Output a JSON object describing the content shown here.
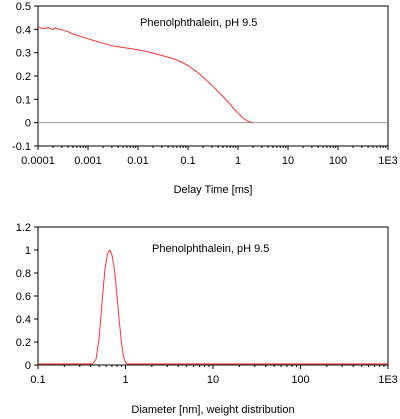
{
  "chart_data": [
    {
      "type": "line",
      "annotation": "Phenolphthalein, pH 9.5",
      "xlabel": "Delay Time [ms]",
      "ylabel": "",
      "xscale": "log",
      "xlim": [
        0.0001,
        1000
      ],
      "ylim": [
        -0.1,
        0.5
      ],
      "x_ticks": [
        "0.0001",
        "0.001",
        "0.01",
        "0.1",
        "1",
        "10",
        "100",
        "1E3"
      ],
      "y_ticks": [
        "0.5",
        "0.4",
        "0.3",
        "0.2",
        "0.1",
        "0",
        "-0.1"
      ],
      "grid": false,
      "zero_line": true,
      "colors": {
        "series": "#ff3333",
        "zero_line": "#9a9a9a",
        "frame": "#000000"
      },
      "series": [
        {
          "x": [
            0.0001,
            0.00013,
            0.00016,
            0.0002,
            0.00022,
            0.00025,
            0.0003,
            0.0004,
            0.0005,
            0.0007,
            0.001,
            0.0015,
            0.002,
            0.003,
            0.005,
            0.007,
            0.01,
            0.015,
            0.02,
            0.03,
            0.05,
            0.07,
            0.1,
            0.15,
            0.2,
            0.3,
            0.5,
            0.7,
            1,
            1.3,
            1.6,
            2
          ],
          "y": [
            0.41,
            0.402,
            0.408,
            0.399,
            0.407,
            0.402,
            0.398,
            0.39,
            0.38,
            0.37,
            0.36,
            0.348,
            0.34,
            0.33,
            0.322,
            0.318,
            0.312,
            0.305,
            0.298,
            0.288,
            0.275,
            0.262,
            0.245,
            0.218,
            0.195,
            0.16,
            0.112,
            0.078,
            0.04,
            0.018,
            0.005,
            0.0
          ]
        }
      ]
    },
    {
      "type": "line",
      "annotation": "Phenolphthalein, pH 9.5",
      "xlabel": "Diameter [nm], weight distribution",
      "ylabel": "",
      "xscale": "log",
      "xlim": [
        0.1,
        1000
      ],
      "ylim": [
        0,
        1.2
      ],
      "x_ticks": [
        "0.1",
        "1",
        "10",
        "100",
        "1E3"
      ],
      "y_ticks": [
        "1.2",
        "1",
        "0.8",
        "0.6",
        "0.4",
        "0.2",
        "0"
      ],
      "grid": false,
      "colors": {
        "series": "#ff3333",
        "frame": "#000000"
      },
      "series": [
        {
          "x": [
            0.1,
            0.3,
            0.42,
            0.46,
            0.5,
            0.54,
            0.58,
            0.62,
            0.66,
            0.7,
            0.75,
            0.8,
            0.85,
            0.9,
            0.95,
            1.0,
            1.05,
            1.2,
            10,
            100,
            1000
          ],
          "y": [
            0.01,
            0.01,
            0.01,
            0.05,
            0.24,
            0.55,
            0.82,
            0.96,
            1.0,
            0.96,
            0.82,
            0.6,
            0.38,
            0.19,
            0.07,
            0.02,
            0.01,
            0.01,
            0.01,
            0.01,
            0.01
          ]
        }
      ]
    }
  ]
}
